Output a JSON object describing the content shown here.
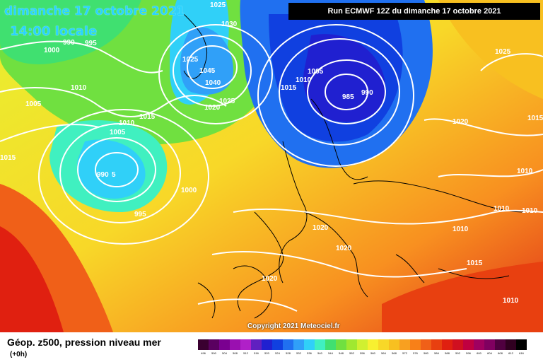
{
  "header": {
    "date": "dimanche 17 octobre 2021",
    "local_time": "14:00 locale",
    "run": "Run ECMWF 12Z du dimanche 17 octobre 2021"
  },
  "copyright": "Copyright 2021 Meteociel.fr",
  "footer": {
    "title": "Géop. z500, pression niveau mer",
    "offset": "(+0h)"
  },
  "scale": {
    "values": [
      "496",
      "500",
      "504",
      "508",
      "512",
      "516",
      "520",
      "524",
      "528",
      "532",
      "536",
      "540",
      "544",
      "548",
      "552",
      "556",
      "560",
      "564",
      "568",
      "572",
      "576",
      "580",
      "584",
      "588",
      "592",
      "596",
      "600",
      "604",
      "608",
      "612",
      "616"
    ],
    "colors": [
      "#3a0030",
      "#5a0060",
      "#7a0090",
      "#9a10b0",
      "#b020c8",
      "#6020c0",
      "#2020d0",
      "#1040e0",
      "#2070f0",
      "#30a0f8",
      "#30d0f8",
      "#40f0c0",
      "#40e070",
      "#70e040",
      "#a0e830",
      "#d0f030",
      "#f8f030",
      "#f8d828",
      "#f8c020",
      "#f8a020",
      "#f88018",
      "#f06018",
      "#e84010",
      "#e02010",
      "#d01020",
      "#c00040",
      "#a00060",
      "#800060",
      "#500040",
      "#300020",
      "#000000"
    ]
  },
  "isobars": [
    {
      "label": "1025",
      "pos": "top"
    },
    {
      "label": "1030",
      "pos": "n"
    },
    {
      "label": "990",
      "pos": "greenland"
    },
    {
      "label": "995",
      "pos": "greenland2"
    },
    {
      "label": "1000",
      "pos": "g3"
    },
    {
      "label": "1010",
      "pos": "g4"
    },
    {
      "label": "1005",
      "pos": "g5"
    },
    {
      "label": "1025",
      "pos": "uk"
    },
    {
      "label": "1045",
      "pos": "h1"
    },
    {
      "label": "1040",
      "pos": "h2"
    },
    {
      "label": "1025",
      "pos": "h3"
    },
    {
      "label": "1020",
      "pos": "h4"
    },
    {
      "label": "1015",
      "pos": "h5"
    },
    {
      "label": "1010",
      "pos": "h6"
    },
    {
      "label": "1005",
      "pos": "h7"
    },
    {
      "label": "1005",
      "pos": "s1"
    },
    {
      "label": "1010",
      "pos": "s2"
    },
    {
      "label": "1015",
      "pos": "s3"
    },
    {
      "label": "985",
      "pos": "low"
    },
    {
      "label": "990",
      "pos": "low2"
    },
    {
      "label": "1025",
      "pos": "e1"
    },
    {
      "label": "1020",
      "pos": "e2"
    },
    {
      "label": "1015",
      "pos": "e3"
    },
    {
      "label": "1010",
      "pos": "e4"
    },
    {
      "label": "1010",
      "pos": "e5"
    },
    {
      "label": "1010",
      "pos": "e6"
    },
    {
      "label": "1010",
      "pos": "e7"
    },
    {
      "label": "1015",
      "pos": "e8"
    },
    {
      "label": "1010",
      "pos": "e9"
    },
    {
      "label": "1015",
      "pos": "w1"
    },
    {
      "label": "990",
      "pos": "al1"
    },
    {
      "label": "5",
      "pos": "al2"
    },
    {
      "label": "1000",
      "pos": "al3"
    },
    {
      "label": "995",
      "pos": "al4"
    },
    {
      "label": "1020",
      "pos": "c1"
    },
    {
      "label": "1020",
      "pos": "c2"
    },
    {
      "label": "1020",
      "pos": "c3"
    }
  ]
}
